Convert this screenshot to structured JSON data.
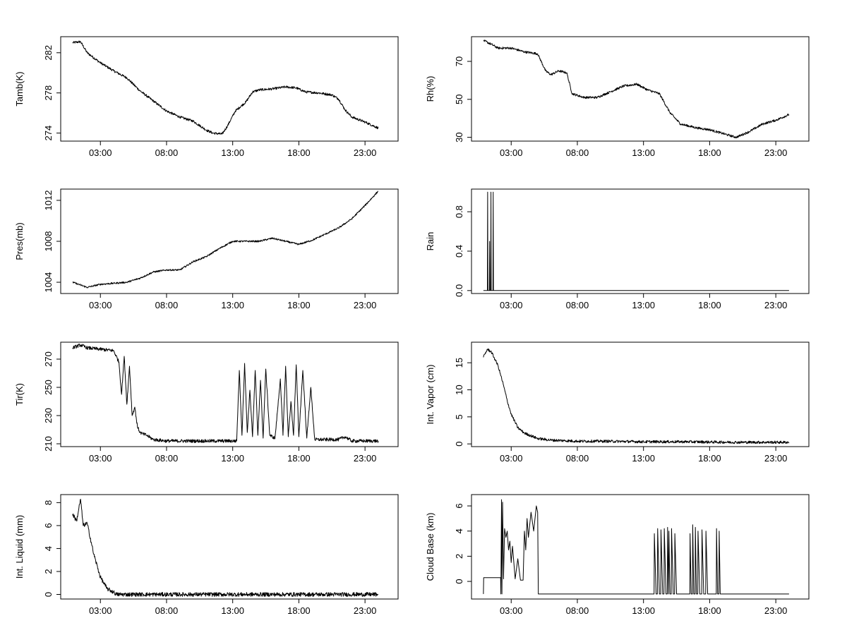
{
  "chart_data": [
    {
      "type": "line",
      "ylabel": "Tamb(K)",
      "xlabel": "",
      "x_unit": "hours",
      "xlim": [
        0,
        25.5
      ],
      "x_ticks": [
        3,
        8,
        13,
        18,
        23
      ],
      "x_tick_labels": [
        "03:00",
        "08:00",
        "13:00",
        "18:00",
        "23:00"
      ],
      "ylim": [
        273.2,
        283.6
      ],
      "y_ticks": [
        274,
        278,
        282
      ],
      "y_tick_labels": [
        "274",
        "278",
        "282"
      ],
      "series": [
        {
          "name": "Tamb(K)",
          "noise": 0.12,
          "x": [
            0.9,
            1.5,
            2.0,
            3.0,
            4.0,
            5.0,
            6.0,
            7.0,
            8.0,
            9.0,
            10.0,
            11.0,
            11.5,
            12.2,
            12.6,
            13.2,
            14.0,
            14.5,
            15.0,
            16.0,
            17.0,
            17.8,
            18.5,
            19.5,
            20.5,
            21.0,
            21.5,
            22.0,
            23.0,
            24.0
          ],
          "values": [
            283.0,
            283.1,
            282.0,
            281.0,
            280.2,
            279.5,
            278.2,
            277.2,
            276.2,
            275.6,
            275.2,
            274.3,
            274.0,
            273.9,
            274.7,
            276.2,
            277.1,
            278.1,
            278.3,
            278.4,
            278.6,
            278.5,
            278.1,
            278.0,
            277.8,
            277.4,
            276.3,
            275.6,
            275.1,
            274.5
          ]
        }
      ]
    },
    {
      "type": "line",
      "ylabel": "Rh(%)",
      "xlabel": "",
      "x_unit": "hours",
      "xlim": [
        0,
        25.5
      ],
      "x_ticks": [
        3,
        8,
        13,
        18,
        23
      ],
      "x_tick_labels": [
        "03:00",
        "08:00",
        "13:00",
        "18:00",
        "23:00"
      ],
      "ylim": [
        28,
        83
      ],
      "y_ticks": [
        30,
        50,
        70
      ],
      "y_tick_labels": [
        "30",
        "50",
        "70"
      ],
      "series": [
        {
          "name": "Rh(%)",
          "noise": 0.6,
          "x": [
            0.9,
            1.5,
            2.0,
            3.0,
            4.0,
            5.0,
            5.6,
            6.0,
            6.6,
            7.2,
            7.6,
            8.5,
            9.5,
            10.5,
            11.5,
            12.5,
            13.3,
            14.2,
            15.0,
            15.8,
            17.0,
            18.0,
            19.0,
            20.0,
            21.0,
            22.0,
            23.0,
            24.0
          ],
          "values": [
            81,
            79,
            77,
            77,
            75,
            74,
            65,
            63,
            65,
            64,
            53,
            51,
            51,
            54,
            57,
            58,
            55,
            53,
            43,
            37,
            35,
            34,
            32,
            30,
            33,
            37,
            39,
            42
          ]
        }
      ]
    },
    {
      "type": "line",
      "ylabel": "Pres(mb)",
      "xlabel": "",
      "x_unit": "hours",
      "xlim": [
        0,
        25.5
      ],
      "x_ticks": [
        3,
        8,
        13,
        18,
        23
      ],
      "x_tick_labels": [
        "03:00",
        "08:00",
        "13:00",
        "18:00",
        "23:00"
      ],
      "ylim": [
        1002.9,
        1013.1
      ],
      "y_ticks": [
        1004,
        1008,
        1012
      ],
      "y_tick_labels": [
        "1004",
        "1008",
        "1012"
      ],
      "series": [
        {
          "name": "Pres(mb)",
          "noise": 0.08,
          "x": [
            0.9,
            2.0,
            3.0,
            4.0,
            5.0,
            6.0,
            7.0,
            8.0,
            9.0,
            10.0,
            11.0,
            12.0,
            13.0,
            14.0,
            15.0,
            16.0,
            17.0,
            18.0,
            19.0,
            20.0,
            21.0,
            22.0,
            23.0,
            24.0
          ],
          "values": [
            1004.0,
            1003.5,
            1003.8,
            1003.9,
            1004.0,
            1004.4,
            1005.0,
            1005.2,
            1005.2,
            1006.0,
            1006.5,
            1007.3,
            1008.0,
            1008.0,
            1008.0,
            1008.3,
            1008.0,
            1007.7,
            1008.1,
            1008.7,
            1009.3,
            1010.2,
            1011.5,
            1012.9
          ]
        }
      ]
    },
    {
      "type": "line",
      "ylabel": "Rain",
      "xlabel": "",
      "x_unit": "hours",
      "xlim": [
        0,
        25.5
      ],
      "x_ticks": [
        3,
        8,
        13,
        18,
        23
      ],
      "x_tick_labels": [
        "03:00",
        "08:00",
        "13:00",
        "18:00",
        "23:00"
      ],
      "ylim": [
        -0.03,
        1.03
      ],
      "y_ticks": [
        0.0,
        0.4,
        0.8
      ],
      "y_tick_labels": [
        "0.0",
        "0.4",
        "0.8"
      ],
      "series": [
        {
          "name": "Rain",
          "noise": 0,
          "x": [
            0.9,
            1.2,
            1.22,
            1.24,
            1.26,
            1.35,
            1.37,
            1.39,
            1.45,
            1.47,
            1.49,
            1.62,
            1.64,
            1.66,
            24.0
          ],
          "values": [
            0,
            0,
            1,
            0,
            0,
            0,
            0.5,
            0,
            0,
            1,
            0,
            0,
            1,
            0,
            0
          ]
        }
      ]
    },
    {
      "type": "line",
      "ylabel": "Tir(K)",
      "xlabel": "",
      "x_unit": "hours",
      "xlim": [
        0,
        25.5
      ],
      "x_ticks": [
        3,
        8,
        13,
        18,
        23
      ],
      "x_tick_labels": [
        "03:00",
        "08:00",
        "13:00",
        "18:00",
        "23:00"
      ],
      "ylim": [
        208,
        282
      ],
      "y_ticks": [
        210,
        230,
        250,
        270
      ],
      "y_tick_labels": [
        "210",
        "230",
        "250",
        "270"
      ],
      "series": [
        {
          "name": "Tir(K)",
          "noise": 1.2,
          "x": [
            0.9,
            1.5,
            2.0,
            3.0,
            4.0,
            4.4,
            4.6,
            4.8,
            5.0,
            5.2,
            5.4,
            5.6,
            5.8,
            6.0,
            6.2,
            6.5,
            7.0,
            8.0,
            10.0,
            12.0,
            13.3,
            13.5,
            13.7,
            13.9,
            14.1,
            14.3,
            14.5,
            14.7,
            14.9,
            15.1,
            15.3,
            15.5,
            15.8,
            16.2,
            16.6,
            16.8,
            17.0,
            17.2,
            17.4,
            17.6,
            17.8,
            18.0,
            18.3,
            18.6,
            18.9,
            19.2,
            20.0,
            21.0,
            21.5,
            22.0,
            23.0,
            24.0
          ],
          "values": [
            278,
            280,
            278,
            277,
            276,
            268,
            245,
            272,
            238,
            265,
            230,
            236,
            222,
            218,
            217,
            216,
            213,
            212,
            212,
            212,
            212,
            262,
            216,
            267,
            218,
            248,
            215,
            262,
            216,
            255,
            214,
            263,
            216,
            214,
            256,
            216,
            265,
            215,
            240,
            216,
            266,
            215,
            262,
            214,
            250,
            213,
            213,
            213,
            215,
            212,
            212,
            212
          ]
        }
      ]
    },
    {
      "type": "line",
      "ylabel": "Int. Vapor (cm)",
      "xlabel": "",
      "x_unit": "hours",
      "xlim": [
        0,
        25.5
      ],
      "x_ticks": [
        3,
        8,
        13,
        18,
        23
      ],
      "x_tick_labels": [
        "03:00",
        "08:00",
        "13:00",
        "18:00",
        "23:00"
      ],
      "ylim": [
        -0.5,
        18.8
      ],
      "y_ticks": [
        0,
        5,
        10,
        15
      ],
      "y_tick_labels": [
        "0",
        "5",
        "10",
        "15"
      ],
      "series": [
        {
          "name": "Int. Vapor (cm)",
          "noise": 0.25,
          "x": [
            0.9,
            1.2,
            1.5,
            1.8,
            2.0,
            2.4,
            2.7,
            3.0,
            3.5,
            4.0,
            5.0,
            6.0,
            7.0,
            8.0,
            10.0,
            13.0,
            16.0,
            20.0,
            24.0
          ],
          "values": [
            16.0,
            17.5,
            17.0,
            15.5,
            14.5,
            11.0,
            8.0,
            5.5,
            3.0,
            2.0,
            1.0,
            0.7,
            0.6,
            0.5,
            0.5,
            0.4,
            0.4,
            0.3,
            0.3
          ]
        }
      ]
    },
    {
      "type": "line",
      "ylabel": "Int. Liquid (mm)",
      "xlabel": "",
      "x_unit": "hours",
      "xlim": [
        0,
        25.5
      ],
      "x_ticks": [
        3,
        8,
        13,
        18,
        23
      ],
      "x_tick_labels": [
        "03:00",
        "08:00",
        "13:00",
        "18:00",
        "23:00"
      ],
      "ylim": [
        -0.4,
        8.7
      ],
      "y_ticks": [
        0,
        2,
        4,
        6,
        8
      ],
      "y_tick_labels": [
        "0",
        "2",
        "4",
        "6",
        "8"
      ],
      "series": [
        {
          "name": "Int. Liquid (mm)",
          "noise": 0.18,
          "x": [
            0.9,
            1.2,
            1.5,
            1.7,
            2.0,
            2.5,
            3.0,
            3.5,
            4.0,
            4.2,
            6.0,
            10.0,
            14.0,
            20.0,
            24.0
          ],
          "values": [
            7.0,
            6.4,
            8.3,
            6.0,
            6.2,
            3.5,
            1.5,
            0.5,
            0.2,
            0.0,
            0.0,
            0.0,
            0.0,
            0.0,
            0.0
          ]
        }
      ]
    },
    {
      "type": "line",
      "ylabel": "Cloud Base (km)",
      "xlabel": "",
      "x_unit": "hours",
      "xlim": [
        0,
        25.5
      ],
      "x_ticks": [
        3,
        8,
        13,
        18,
        23
      ],
      "x_tick_labels": [
        "03:00",
        "08:00",
        "13:00",
        "18:00",
        "23:00"
      ],
      "ylim": [
        -1.4,
        6.9
      ],
      "y_ticks": [
        0,
        2,
        4,
        6
      ],
      "y_tick_labels": [
        "0",
        "2",
        "4",
        "6"
      ],
      "series": [
        {
          "name": "Cloud Base (km)",
          "noise": 0,
          "x": [
            0.9,
            0.92,
            2.2,
            2.22,
            2.27,
            2.3,
            2.35,
            2.42,
            2.5,
            2.6,
            2.7,
            2.8,
            2.9,
            3.0,
            3.1,
            3.3,
            3.5,
            3.7,
            3.9,
            4.0,
            4.1,
            4.2,
            4.3,
            4.5,
            4.7,
            4.9,
            5.0,
            5.05,
            5.1,
            13.8,
            13.82,
            13.95,
            14.05,
            14.07,
            14.2,
            14.3,
            14.32,
            14.45,
            14.55,
            14.57,
            14.7,
            14.8,
            14.82,
            14.9,
            14.92,
            15.0,
            15.1,
            15.12,
            15.25,
            15.35,
            15.37,
            15.5,
            16.5,
            16.52,
            16.6,
            16.7,
            16.72,
            16.8,
            16.9,
            16.92,
            17.0,
            17.1,
            17.12,
            17.25,
            17.4,
            17.42,
            17.55,
            17.7,
            17.72,
            17.85,
            18.5,
            18.52,
            18.6,
            18.7,
            18.72,
            18.8,
            24.0
          ],
          "values": [
            -1,
            0.3,
            0.3,
            -1,
            6.5,
            -1,
            6.3,
            0.2,
            4.2,
            3.5,
            4.0,
            2.5,
            3.2,
            1.5,
            2.8,
            0.2,
            1.8,
            0.1,
            0.1,
            4.0,
            2.5,
            5.0,
            3.5,
            5.5,
            4.0,
            6.0,
            5.5,
            -1,
            -1,
            -1,
            3.8,
            -1,
            -1,
            4.2,
            -1,
            -1,
            4.1,
            -1,
            -1,
            4.2,
            -1,
            -1,
            4.3,
            -1,
            4.0,
            -1,
            -1,
            4.2,
            -1,
            -1,
            3.8,
            -1,
            -1,
            3.8,
            -1,
            -1,
            4.5,
            -1,
            -1,
            4.3,
            -1,
            -1,
            4.0,
            -1,
            -1,
            4.1,
            -1,
            -1,
            4.0,
            -1,
            -1,
            4.2,
            -1,
            -1,
            4.0,
            -1,
            -1
          ]
        }
      ]
    }
  ]
}
